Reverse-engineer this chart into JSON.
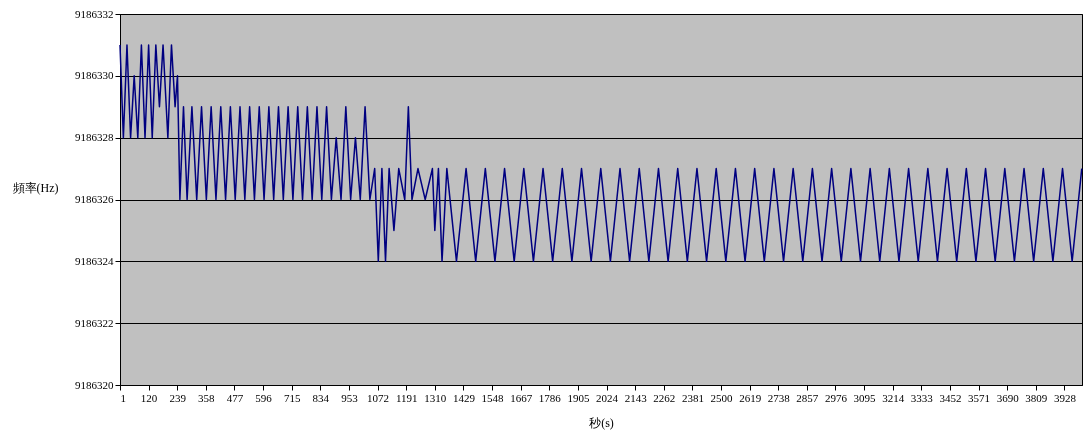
{
  "chart_data": {
    "type": "line",
    "xlabel": "秒(s)",
    "ylabel": "頻率(Hz)",
    "xlim": [
      1,
      4001
    ],
    "xticks": [
      1,
      120,
      239,
      358,
      477,
      596,
      715,
      834,
      953,
      1072,
      1191,
      1310,
      1429,
      1548,
      1667,
      1786,
      1905,
      2024,
      2143,
      2262,
      2381,
      2500,
      2619,
      2738,
      2857,
      2976,
      3095,
      3214,
      3333,
      3452,
      3571,
      3690,
      3809,
      3928
    ],
    "ylim": [
      9186320,
      9186332
    ],
    "yticks": [
      9186320,
      9186322,
      9186324,
      9186326,
      9186328,
      9186330,
      9186332
    ],
    "grid": "y",
    "legend": false,
    "marker": "none",
    "line_style": "solid",
    "series": [
      {
        "color": "#000080",
        "x": [
          1,
          15,
          30,
          45,
          60,
          75,
          90,
          105,
          120,
          135,
          150,
          165,
          180,
          200,
          215,
          230,
          240,
          250,
          265,
          280,
          300,
          320,
          340,
          360,
          380,
          400,
          420,
          440,
          460,
          480,
          500,
          520,
          540,
          560,
          580,
          600,
          620,
          640,
          660,
          680,
          700,
          720,
          740,
          760,
          780,
          800,
          820,
          840,
          860,
          880,
          900,
          920,
          940,
          960,
          980,
          1000,
          1020,
          1040,
          1060,
          1075,
          1090,
          1105,
          1120,
          1140,
          1160,
          1185,
          1200,
          1215,
          1240,
          1270,
          1300,
          1310,
          1325,
          1340,
          1360,
          1400,
          1440,
          1480,
          1520,
          1560,
          1600,
          1640,
          1680,
          1720,
          1760,
          1800,
          1840,
          1880,
          1920,
          1960,
          2000,
          2040,
          2080,
          2120,
          2160,
          2200,
          2240,
          2280,
          2320,
          2360,
          2400,
          2440,
          2480,
          2520,
          2560,
          2600,
          2640,
          2680,
          2720,
          2760,
          2800,
          2840,
          2880,
          2920,
          2960,
          3000,
          3040,
          3080,
          3120,
          3160,
          3200,
          3240,
          3280,
          3320,
          3360,
          3400,
          3440,
          3480,
          3520,
          3560,
          3600,
          3640,
          3680,
          3720,
          3760,
          3800,
          3840,
          3880,
          3920,
          3960,
          4000
        ],
        "values": [
          9186331,
          9186328,
          9186331,
          9186328,
          9186330,
          9186328,
          9186331,
          9186328,
          9186331,
          9186328,
          9186331,
          9186329,
          9186331,
          9186328,
          9186331,
          9186329,
          9186330,
          9186326,
          9186329,
          9186326,
          9186329,
          9186326,
          9186329,
          9186326,
          9186329,
          9186326,
          9186329,
          9186326,
          9186329,
          9186326,
          9186329,
          9186326,
          9186329,
          9186326,
          9186329,
          9186326,
          9186329,
          9186326,
          9186329,
          9186326,
          9186329,
          9186326,
          9186329,
          9186326,
          9186329,
          9186326,
          9186329,
          9186326,
          9186329,
          9186326,
          9186328,
          9186326,
          9186329,
          9186326,
          9186328,
          9186326,
          9186329,
          9186326,
          9186327,
          9186324,
          9186327,
          9186324,
          9186327,
          9186325,
          9186327,
          9186326,
          9186329,
          9186326,
          9186327,
          9186326,
          9186327,
          9186325,
          9186327,
          9186324,
          9186327,
          9186324,
          9186327,
          9186324,
          9186327,
          9186324,
          9186327,
          9186324,
          9186327,
          9186324,
          9186327,
          9186324,
          9186327,
          9186324,
          9186327,
          9186324,
          9186327,
          9186324,
          9186327,
          9186324,
          9186327,
          9186324,
          9186327,
          9186324,
          9186327,
          9186324,
          9186327,
          9186324,
          9186327,
          9186324,
          9186327,
          9186324,
          9186327,
          9186324,
          9186327,
          9186324,
          9186327,
          9186324,
          9186327,
          9186324,
          9186327,
          9186324,
          9186327,
          9186324,
          9186327,
          9186324,
          9186327,
          9186324,
          9186327,
          9186324,
          9186327,
          9186324,
          9186327,
          9186324,
          9186327,
          9186324,
          9186327,
          9186324,
          9186327,
          9186324,
          9186327,
          9186324,
          9186327,
          9186324,
          9186327,
          9186324,
          9186327
        ]
      }
    ]
  }
}
